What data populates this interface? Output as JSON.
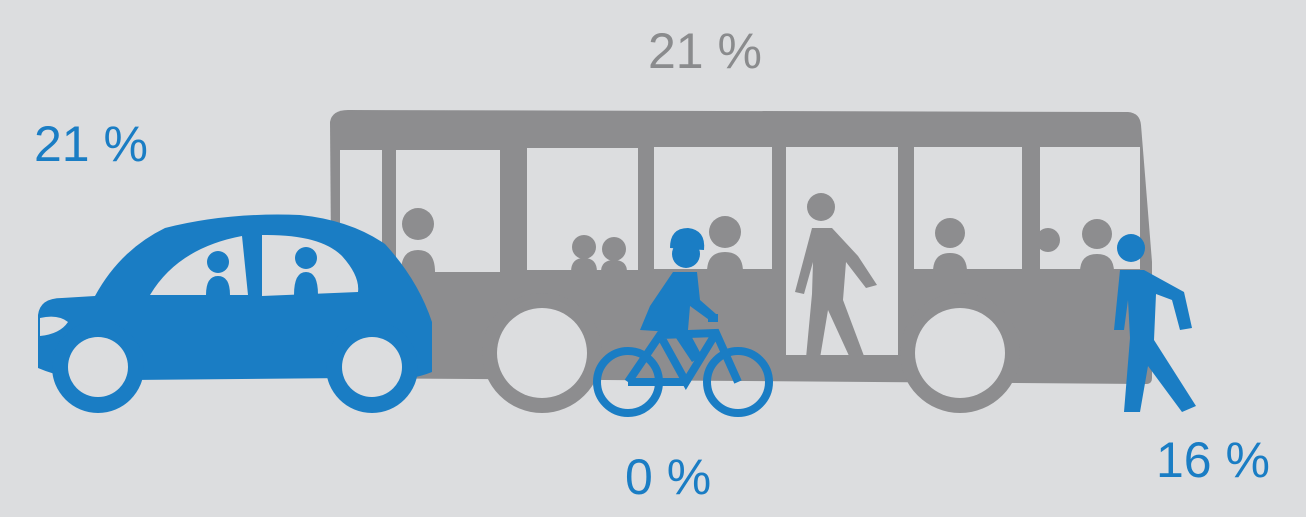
{
  "colors": {
    "background": "#dcdddf",
    "blue": "#1a7dc4",
    "gray": "#8d8d8f",
    "gray_text": "#8a8b8d"
  },
  "modes": [
    {
      "id": "bus",
      "icon": "bus-icon",
      "label": "21 %",
      "color": "#8a8b8d"
    },
    {
      "id": "car",
      "icon": "car-icon",
      "label": "21 %",
      "color": "#1a7dc4"
    },
    {
      "id": "bike",
      "icon": "bicycle-icon",
      "label": "0 %",
      "color": "#1a7dc4"
    },
    {
      "id": "walk",
      "icon": "pedestrian-icon",
      "label": "16 %",
      "color": "#1a7dc4"
    }
  ]
}
